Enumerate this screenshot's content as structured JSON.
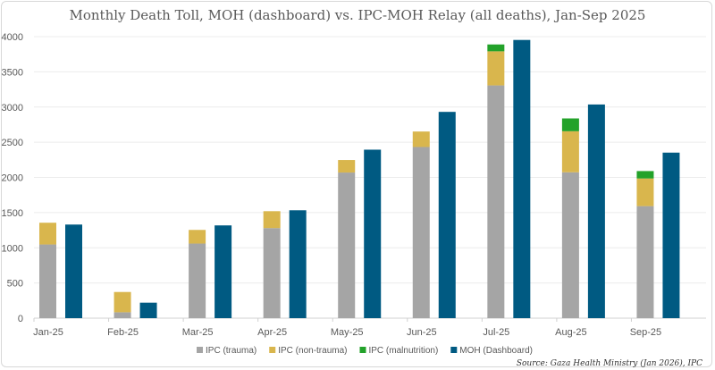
{
  "chart_data": {
    "type": "bar",
    "title": "Monthly Death Toll, MOH (dashboard) vs. IPC-MOH Relay (all deaths), Jan-Sep 2025",
    "xlabel": "",
    "ylabel": "",
    "ylim": [
      0,
      4000
    ],
    "yticks": [
      0,
      500,
      1000,
      1500,
      2000,
      2500,
      3000,
      3500,
      4000
    ],
    "grid": true,
    "legend_position": "bottom",
    "categories": [
      "Jan-25",
      "Feb-25",
      "Mar-25",
      "Apr-25",
      "May-25",
      "Jun-25",
      "Jul-25",
      "Aug-25",
      "Sep-25"
    ],
    "series": [
      {
        "name": "IPC (trauma)",
        "stack": "ipc",
        "color": "#a5a5a5",
        "values": [
          1047,
          84,
          1060,
          1280,
          2069,
          2432,
          3307,
          2073,
          1592
        ]
      },
      {
        "name": "IPC (non-trauma)",
        "stack": "ipc",
        "color": "#d9b64d",
        "values": [
          309,
          288,
          194,
          240,
          178,
          220,
          485,
          583,
          393
        ]
      },
      {
        "name": "IPC (malnutrition)",
        "stack": "ipc",
        "color": "#23a22a",
        "values": [
          0,
          0,
          0,
          0,
          0,
          0,
          97,
          182,
          105
        ]
      },
      {
        "name": "MOH (Dashboard)",
        "stack": "moh",
        "color": "#005a82",
        "values": [
          1330,
          220,
          1318,
          1533,
          2394,
          2931,
          3953,
          3036,
          2352
        ]
      }
    ],
    "source": "Source: Gaza Health Ministry (Jan 2026), IPC"
  }
}
